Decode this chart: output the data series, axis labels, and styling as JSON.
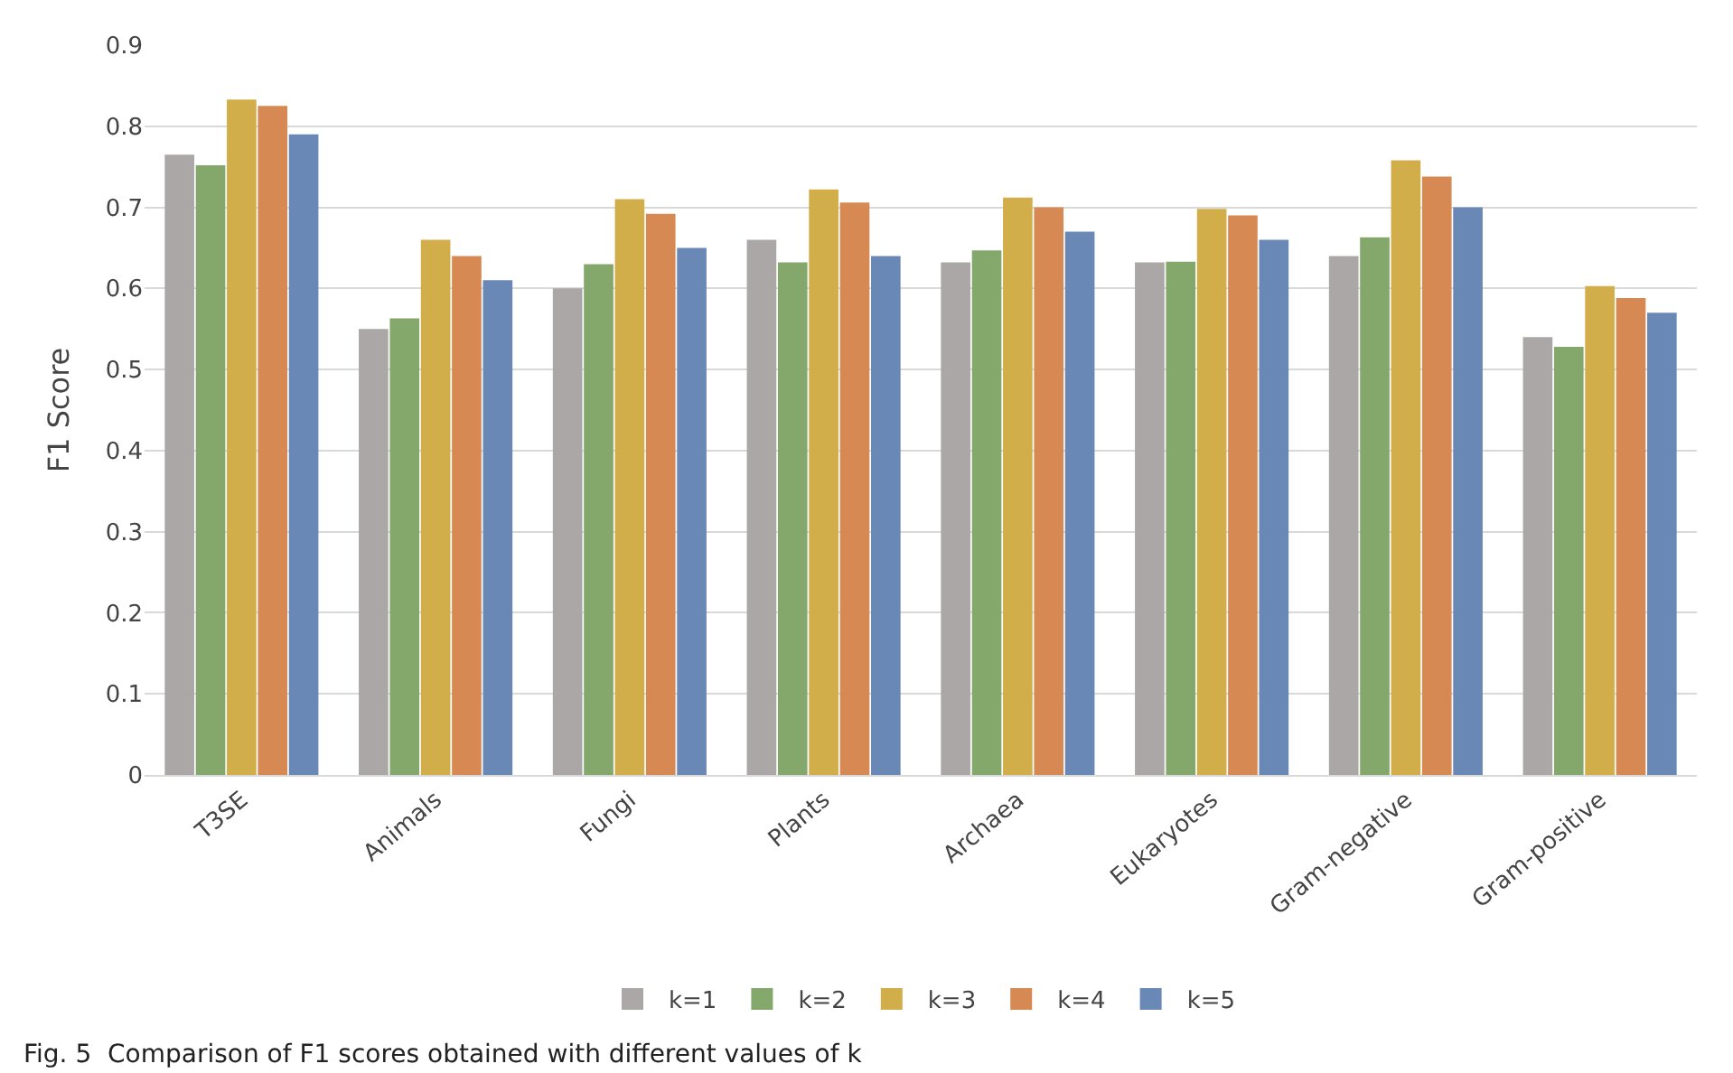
{
  "chart_data": {
    "type": "bar",
    "ylabel": "F1 Score",
    "categories": [
      "T3SE",
      "Animals",
      "Fungi",
      "Plants",
      "Archaea",
      "Eukaryotes",
      "Gram-negative",
      "Gram-positive"
    ],
    "series": [
      {
        "name": "k=1",
        "color": "#aaa7a6",
        "values": [
          0.765,
          0.55,
          0.6,
          0.66,
          0.632,
          0.632,
          0.64,
          0.54
        ]
      },
      {
        "name": "k=2",
        "color": "#84a86c",
        "values": [
          0.752,
          0.563,
          0.63,
          0.632,
          0.647,
          0.633,
          0.663,
          0.528
        ]
      },
      {
        "name": "k=3",
        "color": "#d1ae4a",
        "values": [
          0.833,
          0.66,
          0.71,
          0.722,
          0.712,
          0.698,
          0.758,
          0.603
        ]
      },
      {
        "name": "k=4",
        "color": "#d68953",
        "values": [
          0.825,
          0.64,
          0.692,
          0.706,
          0.7,
          0.69,
          0.738,
          0.588
        ]
      },
      {
        "name": "k=5",
        "color": "#6a88b6",
        "values": [
          0.79,
          0.61,
          0.65,
          0.64,
          0.67,
          0.66,
          0.7,
          0.57
        ]
      }
    ],
    "ylim": [
      0,
      0.9
    ],
    "yticks": [
      0,
      0.1,
      0.2,
      0.3,
      0.4,
      0.5,
      0.6,
      0.7,
      0.8,
      0.9
    ],
    "grid": "y",
    "legend": "bottom",
    "annotations": [
      "Fig. 5  Comparison of F1 scores obtained with different values of k"
    ]
  }
}
